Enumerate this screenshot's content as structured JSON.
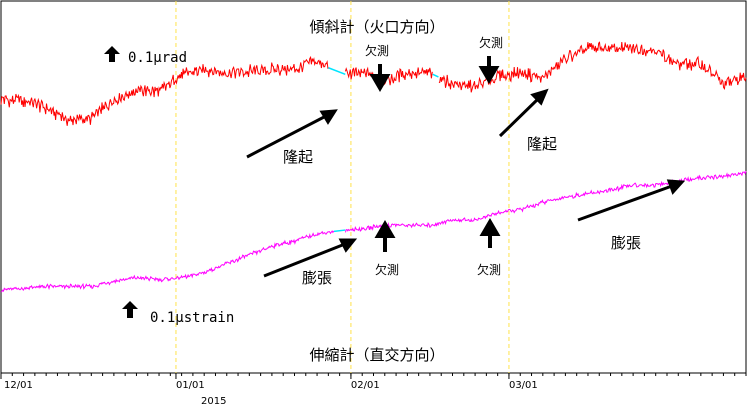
{
  "chart_data": {
    "type": "line",
    "x_ticks": [
      "12/01",
      "01/01",
      "02/01",
      "03/01"
    ],
    "year_label": "2015",
    "series": [
      {
        "name": "傾斜計（火口方向）",
        "color": "#ff0000",
        "x": [
          0,
          4,
          8,
          12,
          16,
          20,
          24,
          28,
          32,
          36,
          40,
          44,
          48,
          52,
          56,
          60,
          64,
          68,
          72,
          76,
          80,
          84,
          88,
          92,
          96,
          100,
          104,
          108,
          112,
          116,
          120,
          124,
          128,
          132
        ],
        "values": [
          10.9,
          10.8,
          10.4,
          9.7,
          9.8,
          10.9,
          11.4,
          11.3,
          12.3,
          12.6,
          12.4,
          12.5,
          12.6,
          12.6,
          13.1,
          12.3,
          12.4,
          12.0,
          12.4,
          12.4,
          11.8,
          11.6,
          12.2,
          12.4,
          12.1,
          13.2,
          13.8,
          13.8,
          13.8,
          13.7,
          12.9,
          12.9,
          11.8,
          12.2
        ]
      },
      {
        "name": "伸縮計（直交方向）",
        "color": "#ff00ff",
        "x": [
          0,
          4,
          8,
          12,
          16,
          20,
          24,
          28,
          32,
          36,
          40,
          44,
          48,
          52,
          56,
          60,
          64,
          68,
          72,
          76,
          80,
          84,
          88,
          92,
          96,
          100,
          104,
          108,
          112,
          116,
          120,
          124,
          128,
          132
        ],
        "values": [
          0.0,
          0.1,
          0.2,
          0.2,
          0.2,
          0.5,
          0.7,
          0.6,
          0.7,
          1.0,
          1.5,
          2.0,
          2.5,
          2.8,
          3.2,
          3.4,
          3.5,
          3.7,
          3.7,
          3.7,
          4.0,
          4.0,
          4.4,
          4.6,
          5.0,
          5.3,
          5.5,
          5.7,
          6.0,
          6.0,
          6.2,
          6.4,
          6.5,
          6.7
        ]
      }
    ],
    "xlim": [
      0,
      132
    ],
    "ylim": [
      0,
      14
    ],
    "vlines_x": [
      31,
      62,
      90
    ],
    "gaps": [
      {
        "series": 0,
        "x": [
          58,
          61
        ],
        "label": "欠測"
      },
      {
        "series": 0,
        "x": [
          76.5,
          77.5
        ],
        "label": "欠測"
      },
      {
        "series": 1,
        "x": [
          59,
          61
        ],
        "label": "欠測"
      }
    ],
    "annotations": {
      "tilt_title": "傾斜計（火口方向）",
      "strain_title": "伸縮計（直交方向）",
      "tilt_scale": "0.1μrad",
      "strain_scale": "0.1μstrain",
      "uplift_1": "隆起",
      "uplift_2": "隆起",
      "expansion_1": "膨張",
      "expansion_2": "膨張",
      "missing_1": "欠測",
      "missing_2": "欠測",
      "missing_3": "欠測",
      "missing_4": "欠測"
    },
    "grid": false,
    "colors": {
      "tilt": "#ff0000",
      "strain": "#ff00ff",
      "gap": "#00e5ff",
      "vline": "#ffe24a",
      "frame": "#000000"
    }
  }
}
